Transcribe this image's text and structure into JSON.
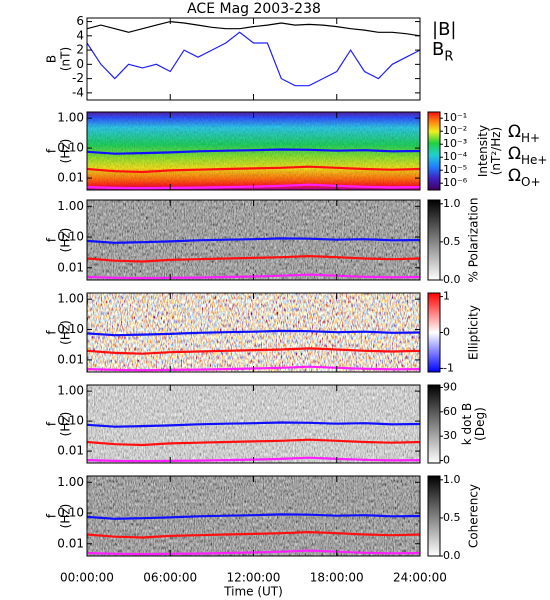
{
  "chart_data": [
    {
      "type": "line",
      "title": "ACE Mag 2003-238",
      "ylabel": [
        "B",
        "(nT)"
      ],
      "x": [
        0,
        1,
        2,
        3,
        4,
        5,
        6,
        7,
        8,
        9,
        10,
        11,
        12,
        13,
        14,
        15,
        16,
        17,
        18,
        19,
        20,
        21,
        22,
        23,
        24
      ],
      "ylim": [
        -5,
        6.5
      ],
      "yticks": [
        -4,
        -2,
        0,
        2,
        4,
        6
      ],
      "series": [
        {
          "name": "|B|",
          "color": "#000000",
          "values": [
            5,
            5.5,
            5,
            4.5,
            5,
            5.5,
            6,
            5.8,
            5.5,
            5.2,
            5,
            5,
            5.3,
            5.5,
            5.8,
            5.5,
            5.6,
            5.5,
            5.3,
            5,
            4.8,
            4.5,
            4.5,
            4.3,
            4
          ]
        },
        {
          "name": "B",
          "subscript": "R",
          "color": "#2020ff",
          "values": [
            3,
            0,
            -2,
            0,
            -0.5,
            0,
            -1,
            2,
            1,
            2,
            3,
            4.5,
            3,
            3,
            -2,
            -3,
            -3,
            -2,
            -1,
            2,
            -1,
            -2,
            0,
            1,
            2
          ]
        }
      ]
    },
    {
      "type": "spectrogram",
      "ylabel": [
        "f",
        "(Hz)"
      ],
      "ylog": true,
      "ylim": [
        0.004,
        1.6
      ],
      "yticks": [
        {
          "value": 1,
          "label": "1.00"
        },
        {
          "value": 0.1,
          "label": "0.10"
        },
        {
          "value": 0.01,
          "label": "0.01"
        }
      ],
      "colormap": "rainbow",
      "clog": true,
      "clim": [
        3e-07,
        0.3
      ],
      "cticks": [
        {
          "value": 0.1,
          "label": "10⁻¹"
        },
        {
          "value": 0.01,
          "label": "10⁻²"
        },
        {
          "value": 0.001,
          "label": "10⁻³"
        },
        {
          "value": 0.0001,
          "label": "10⁻⁴"
        },
        {
          "value": 1e-05,
          "label": "10⁻⁵"
        },
        {
          "value": 1e-06,
          "label": "10⁻⁶"
        }
      ],
      "clabel": [
        "Intensity",
        "(nT²/Hz)"
      ],
      "x": [
        0,
        2,
        4,
        6,
        8,
        10,
        12,
        14,
        16,
        18,
        20,
        22,
        24
      ],
      "series": [
        {
          "name": "Ω",
          "subscript": "H+",
          "color": "#1010ff",
          "values": [
            0.075,
            0.065,
            0.068,
            0.072,
            0.078,
            0.082,
            0.085,
            0.09,
            0.088,
            0.082,
            0.085,
            0.078,
            0.08
          ]
        },
        {
          "name": "Ω",
          "subscript": "He+",
          "color": "#ff1010",
          "values": [
            0.02,
            0.017,
            0.016,
            0.018,
            0.019,
            0.02,
            0.021,
            0.022,
            0.024,
            0.022,
            0.02,
            0.019,
            0.02
          ]
        },
        {
          "name": "Ω",
          "subscript": "O+",
          "color": "#ff20ff",
          "values": [
            0.005,
            0.0047,
            0.0046,
            0.0047,
            0.0048,
            0.005,
            0.0052,
            0.0055,
            0.006,
            0.0055,
            0.0051,
            0.0049,
            0.005
          ]
        }
      ]
    },
    {
      "type": "spectrogram",
      "ylabel": [
        "f",
        "(Hz)"
      ],
      "ylog": true,
      "ylim": [
        0.004,
        1.6
      ],
      "yticks": [
        {
          "value": 1,
          "label": "1.00"
        },
        {
          "value": 0.1,
          "label": "0.10"
        },
        {
          "value": 0.01,
          "label": "0.01"
        }
      ],
      "colormap": "gray",
      "clim": [
        0,
        1.05
      ],
      "cticks": [
        {
          "value": 0,
          "label": "0.0"
        },
        {
          "value": 0.5,
          "label": "0.5"
        },
        {
          "value": 1,
          "label": "1.0"
        }
      ],
      "clabel": [
        "% Polarization"
      ]
    },
    {
      "type": "spectrogram",
      "ylabel": [
        "f",
        "(Hz)"
      ],
      "ylog": true,
      "ylim": [
        0.004,
        1.6
      ],
      "yticks": [
        {
          "value": 1,
          "label": "1.00"
        },
        {
          "value": 0.1,
          "label": "0.10"
        },
        {
          "value": 0.01,
          "label": "0.01"
        }
      ],
      "colormap": "bwr",
      "clim": [
        -1.1,
        1.1
      ],
      "cticks": [
        -1,
        0,
        1
      ],
      "clabel": [
        "Ellipticity"
      ]
    },
    {
      "type": "spectrogram",
      "ylabel": [
        "f",
        "(Hz)"
      ],
      "ylog": true,
      "ylim": [
        0.004,
        1.6
      ],
      "yticks": [
        {
          "value": 1,
          "label": "1.00"
        },
        {
          "value": 0.1,
          "label": "0.10"
        },
        {
          "value": 0.01,
          "label": "0.01"
        }
      ],
      "colormap": "gray_r",
      "clim": [
        -3,
        93
      ],
      "cticks": [
        0,
        30,
        60,
        90
      ],
      "clabel": [
        "k dot B",
        "(Deg)"
      ]
    },
    {
      "type": "spectrogram",
      "ylabel": [
        "f",
        "(Hz)"
      ],
      "ylog": true,
      "ylim": [
        0.004,
        1.6
      ],
      "yticks": [
        {
          "value": 1,
          "label": "1.00"
        },
        {
          "value": 0.1,
          "label": "0.10"
        },
        {
          "value": 0.01,
          "label": "0.01"
        }
      ],
      "colormap": "gray",
      "clim": [
        0,
        1.05
      ],
      "cticks": [
        {
          "value": 0,
          "label": "0.0"
        },
        {
          "value": 0.5,
          "label": "0.5"
        },
        {
          "value": 1,
          "label": "1.0"
        }
      ],
      "clabel": [
        "Coherency"
      ],
      "xlabel": "Time (UT)",
      "xlim": [
        0,
        24
      ],
      "xticks": [
        {
          "value": 0,
          "label": "00:00:00"
        },
        {
          "value": 6,
          "label": "06:00:00"
        },
        {
          "value": 12,
          "label": "12:00:00"
        },
        {
          "value": 18,
          "label": "18:00:00"
        },
        {
          "value": 24,
          "label": "24:00:00"
        }
      ]
    }
  ]
}
